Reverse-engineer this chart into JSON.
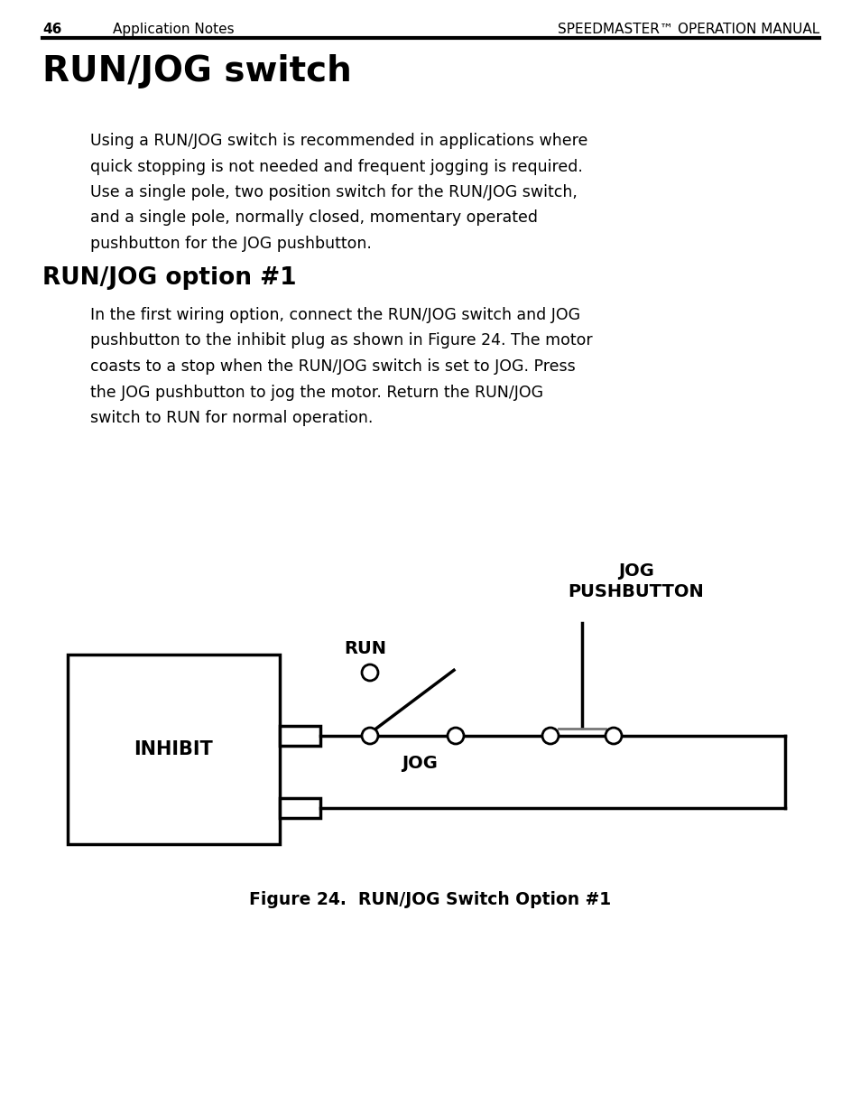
{
  "page_number": "46",
  "header_left": "Application Notes",
  "header_right": "SPEEDMASTER™ OPERATION MANUAL",
  "title": "RUN/JOG switch",
  "body_text1": "Using a RUN/JOG switch is recommended in applications where\nquick stopping is not needed and frequent jogging is required.\nUse a single pole, two position switch for the RUN/JOG switch,\nand a single pole, normally closed, momentary operated\npushbutton for the JOG pushbutton.",
  "subtitle": "RUN/JOG option #1",
  "body_text2": "In the first wiring option, connect the RUN/JOG switch and JOG\npushbutton to the inhibit plug as shown in Figure 24. The motor\ncoasts to a stop when the RUN/JOG switch is set to JOG. Press\nthe JOG pushbutton to jog the motor. Return the RUN/JOG\nswitch to RUN for normal operation.",
  "figure_caption": "Figure 24.  RUN/JOG Switch Option #1",
  "label_inhibit": "INHIBIT",
  "label_run": "RUN",
  "label_jog": "JOG",
  "label_jog_pushbutton": "JOG\nPUSHBUTTON",
  "bg_color": "#ffffff",
  "text_color": "#000000",
  "line_color": "#000000"
}
